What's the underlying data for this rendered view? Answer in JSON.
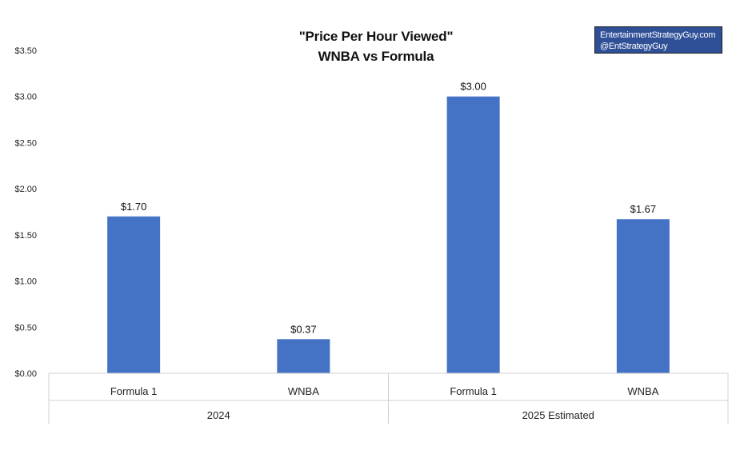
{
  "watermark": {
    "line1": "EntertainmentStrategyGuy.com",
    "line2": "@EntStrategyGuy",
    "bg_color": "#2f4f97"
  },
  "chart_data": {
    "type": "bar",
    "title_lines": [
      "\"Price Per Hour Viewed\"",
      "WNBA vs Formula"
    ],
    "groups": [
      {
        "label": "2024",
        "categories": [
          "Formula 1",
          "WNBA"
        ]
      },
      {
        "label": "2025 Estimated",
        "categories": [
          "Formula 1",
          "WNBA"
        ]
      }
    ],
    "categories": [
      "Formula 1",
      "WNBA",
      "Formula 1",
      "WNBA"
    ],
    "values": [
      1.7,
      0.37,
      3.0,
      1.67
    ],
    "data_labels": [
      "$1.70",
      "$0.37",
      "$3.00",
      "$1.67"
    ],
    "ylim": [
      0,
      3.5
    ],
    "yticks": [
      0,
      0.5,
      1.0,
      1.5,
      2.0,
      2.5,
      3.0,
      3.5
    ],
    "ytick_labels": [
      "$0.00",
      "$0.50",
      "$1.00",
      "$1.50",
      "$2.00",
      "$2.50",
      "$3.00",
      "$3.50"
    ],
    "bar_color": "#4472c4",
    "grid": false,
    "legend": "none"
  }
}
